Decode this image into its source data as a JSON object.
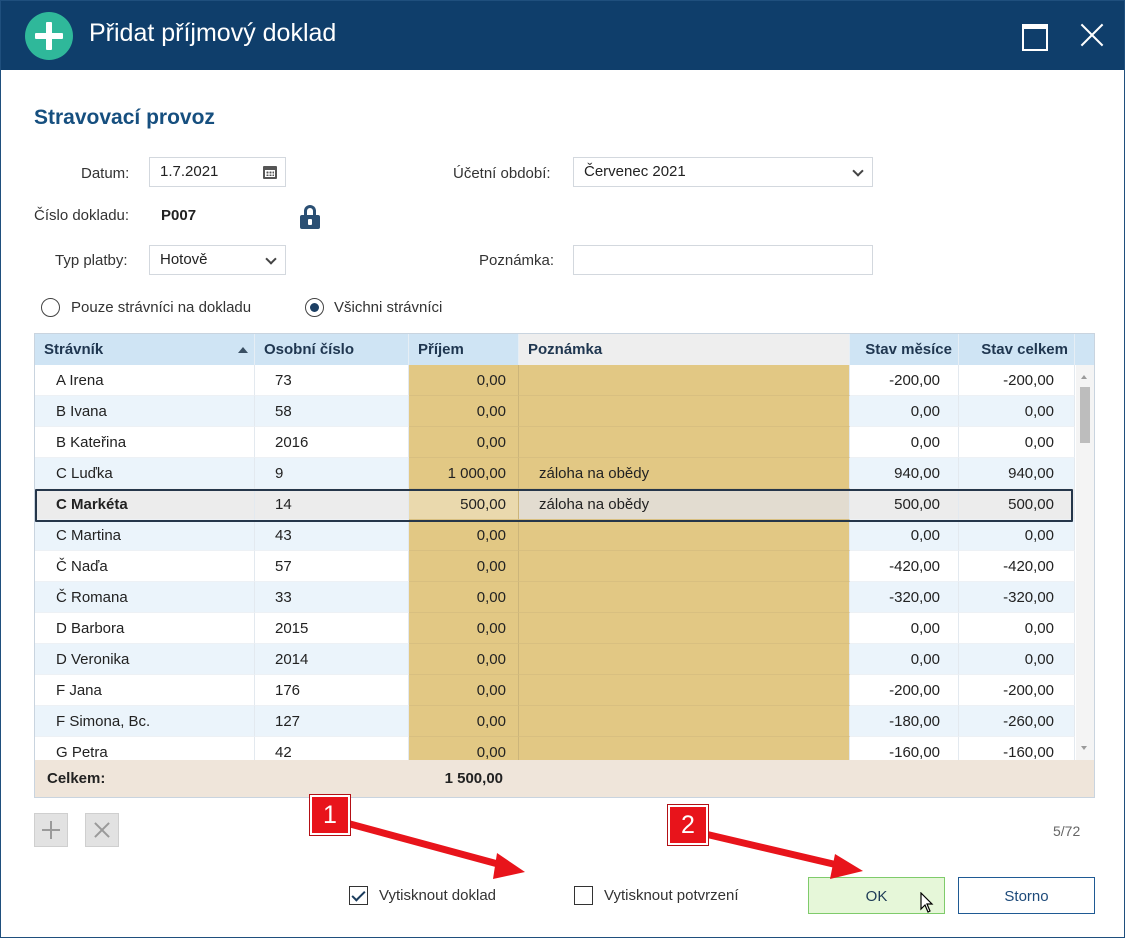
{
  "window": {
    "title": "Přidat příjmový doklad"
  },
  "section_title": "Stravovací provoz",
  "form": {
    "datum_label": "Datum:",
    "datum_value": "1.7.2021",
    "obdobi_label": "Účetní období:",
    "obdobi_value": "Červenec 2021",
    "cislo_label": "Číslo dokladu:",
    "cislo_value": "P007",
    "typ_label": "Typ platby:",
    "typ_value": "Hotově",
    "poznamka_label": "Poznámka:",
    "poznamka_value": ""
  },
  "filter": {
    "option1": "Pouze strávníci na dokladu",
    "option2": "Všichni strávníci",
    "selected": 2
  },
  "grid": {
    "headers": {
      "stravnik": "Strávník",
      "osobni": "Osobní číslo",
      "prijem": "Příjem",
      "poznamka": "Poznámka",
      "stav_mesice": "Stav měsíce",
      "stav_celkem": "Stav celkem"
    },
    "rows": [
      {
        "name": "A Irena",
        "osobni": "73",
        "prijem": "0,00",
        "poznamka": "",
        "stav_mesice": "-200,00",
        "stav_celkem": "-200,00"
      },
      {
        "name": "B Ivana",
        "osobni": "58",
        "prijem": "0,00",
        "poznamka": "",
        "stav_mesice": "0,00",
        "stav_celkem": "0,00"
      },
      {
        "name": "B Kateřina",
        "osobni": "2016",
        "prijem": "0,00",
        "poznamka": "",
        "stav_mesice": "0,00",
        "stav_celkem": "0,00"
      },
      {
        "name": "C Luďka",
        "osobni": "9",
        "prijem": "1 000,00",
        "poznamka": "záloha na obědy",
        "stav_mesice": "940,00",
        "stav_celkem": "940,00"
      },
      {
        "name": "C Markéta",
        "osobni": "14",
        "prijem": "500,00",
        "poznamka": "záloha na obědy",
        "stav_mesice": "500,00",
        "stav_celkem": "500,00"
      },
      {
        "name": "C Martina",
        "osobni": "43",
        "prijem": "0,00",
        "poznamka": "",
        "stav_mesice": "0,00",
        "stav_celkem": "0,00"
      },
      {
        "name": "Č Naďa",
        "osobni": "57",
        "prijem": "0,00",
        "poznamka": "",
        "stav_mesice": "-420,00",
        "stav_celkem": "-420,00"
      },
      {
        "name": "Č Romana",
        "osobni": "33",
        "prijem": "0,00",
        "poznamka": "",
        "stav_mesice": "-320,00",
        "stav_celkem": "-320,00"
      },
      {
        "name": "D Barbora",
        "osobni": "2015",
        "prijem": "0,00",
        "poznamka": "",
        "stav_mesice": "0,00",
        "stav_celkem": "0,00"
      },
      {
        "name": "D Veronika",
        "osobni": "2014",
        "prijem": "0,00",
        "poznamka": "",
        "stav_mesice": "0,00",
        "stav_celkem": "0,00"
      },
      {
        "name": "F Jana",
        "osobni": "176",
        "prijem": "0,00",
        "poznamka": "",
        "stav_mesice": "-200,00",
        "stav_celkem": "-200,00"
      },
      {
        "name": "F Simona, Bc.",
        "osobni": "127",
        "prijem": "0,00",
        "poznamka": "",
        "stav_mesice": "-180,00",
        "stav_celkem": "-260,00"
      },
      {
        "name": "G Petra",
        "osobni": "42",
        "prijem": "0,00",
        "poznamka": "",
        "stav_mesice": "-160,00",
        "stav_celkem": "-160,00"
      }
    ],
    "selected_row": 4,
    "footer_label": "Celkem:",
    "footer_total": "1 500,00"
  },
  "counter": "5/72",
  "options": {
    "print_doc": "Vytisknout doklad",
    "print_doc_checked": true,
    "print_confirm": "Vytisknout potvrzení",
    "print_confirm_checked": false
  },
  "buttons": {
    "ok": "OK",
    "cancel": "Storno"
  },
  "annotations": {
    "badge1": "1",
    "badge2": "2"
  },
  "colors": {
    "titlebar": "#0f3e6b",
    "accent": "#164f7f",
    "edit_column": "#e2c884",
    "annotation_red": "#e8141b"
  }
}
